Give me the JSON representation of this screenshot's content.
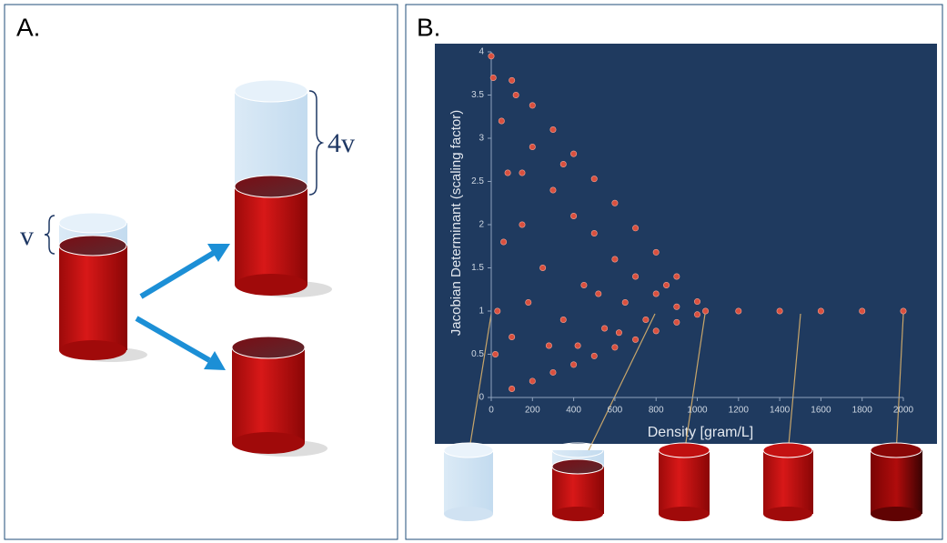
{
  "panel_labels": [
    "A.",
    "B."
  ],
  "annotations": [
    "v",
    "4v"
  ],
  "chart_data": {
    "type": "scatter",
    "x_label": "Density [gram/L]",
    "y_label": "Jacobian Determinant (scaling factor)",
    "color": "#d9503f",
    "x": [
      0,
      100,
      200,
      300,
      400,
      500,
      600,
      700,
      800,
      900,
      1000,
      100,
      200,
      300,
      400,
      500,
      600,
      700,
      800,
      900,
      1000,
      1040,
      1200,
      1400,
      1600,
      1800,
      2000,
      50,
      80,
      120,
      150,
      200,
      250,
      300,
      350,
      400,
      450,
      500,
      550,
      600,
      650,
      700,
      750,
      800,
      850,
      900,
      30,
      20,
      60,
      100,
      180,
      280,
      420,
      520,
      620,
      150,
      350,
      10
    ],
    "values": [
      3.95,
      3.67,
      3.38,
      3.1,
      2.82,
      2.53,
      2.25,
      1.96,
      1.68,
      1.4,
      1.11,
      0.1,
      0.19,
      0.29,
      0.38,
      0.48,
      0.58,
      0.67,
      0.77,
      0.87,
      0.96,
      1,
      1,
      1,
      1,
      1,
      1,
      3.2,
      2.6,
      3.5,
      2.0,
      2.9,
      1.5,
      2.4,
      0.9,
      2.1,
      1.3,
      1.9,
      0.8,
      1.6,
      1.1,
      1.4,
      0.9,
      1.2,
      1.3,
      1.05,
      1.0,
      0.5,
      1.8,
      0.7,
      1.1,
      0.6,
      0.6,
      1.2,
      0.75,
      2.6,
      2.7,
      3.7
    ],
    "xlim": [
      0,
      2000
    ],
    "ylim": [
      0,
      4
    ],
    "xticks": [
      0,
      200,
      400,
      600,
      800,
      1000,
      1200,
      1400,
      1600,
      1800,
      2000
    ],
    "yticks": [
      0,
      0.5,
      1,
      1.5,
      2,
      2.5,
      3,
      3.5,
      4
    ]
  }
}
